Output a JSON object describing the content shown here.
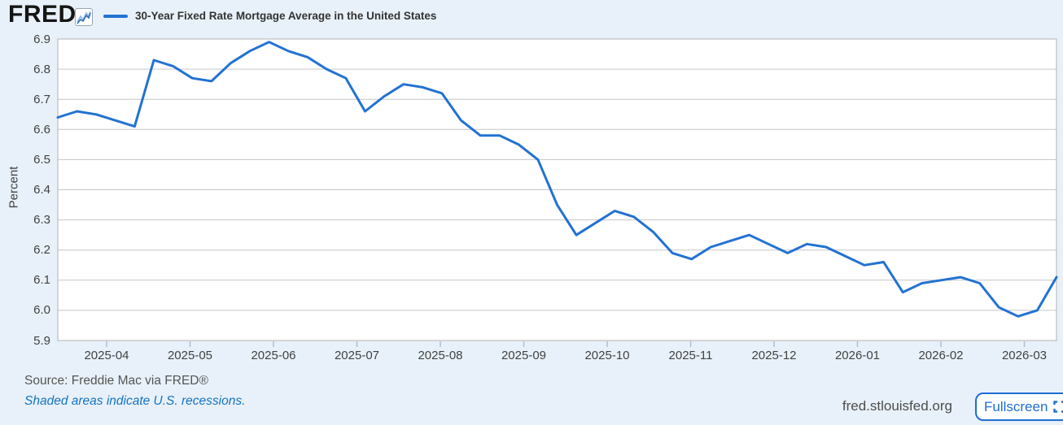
{
  "header": {
    "logo_text": "FRED",
    "logo_registered": "®"
  },
  "chart_data": {
    "type": "line",
    "title": "30-Year Fixed Rate Mortgage Average in the United States",
    "ylabel": "Percent",
    "ylim": [
      5.9,
      6.9
    ],
    "ytick_step": 0.1,
    "ytick_labels": [
      "6.9",
      "6.8",
      "6.7",
      "6.6",
      "6.5",
      "6.4",
      "6.3",
      "6.2",
      "6.1",
      "6.0",
      "5.9"
    ],
    "xtick_labels": [
      "2025-04",
      "2025-05",
      "2025-06",
      "2025-07",
      "2025-08",
      "2025-09",
      "2025-10",
      "2025-11",
      "2025-12",
      "2026-01",
      "2026-02",
      "2026-03"
    ],
    "x_range": "2025-03 to 2026-03",
    "frequency": "weekly",
    "grid": "horizontal",
    "legend_position": "top-left",
    "series": [
      {
        "name": "30-Year Fixed Rate Mortgage Average in the United States",
        "color": "#2272d2",
        "values": [
          6.64,
          6.66,
          6.65,
          6.63,
          6.61,
          6.83,
          6.81,
          6.77,
          6.76,
          6.82,
          6.86,
          6.89,
          6.86,
          6.84,
          6.8,
          6.77,
          6.66,
          6.71,
          6.75,
          6.74,
          6.72,
          6.63,
          6.58,
          6.58,
          6.55,
          6.5,
          6.35,
          6.25,
          6.29,
          6.33,
          6.31,
          6.26,
          6.19,
          6.17,
          6.21,
          6.23,
          6.25,
          6.22,
          6.19,
          6.22,
          6.21,
          6.18,
          6.15,
          6.16,
          6.06,
          6.09,
          6.1,
          6.11,
          6.09,
          6.01,
          5.98,
          6.0,
          6.11
        ]
      }
    ]
  },
  "footer": {
    "source": "Source: Freddie Mac via FRED®",
    "recession_note": "Shaded areas indicate U.S. recessions.",
    "site": "fred.stlouisfed.org",
    "fullscreen_label": "Fullscreen"
  },
  "colors": {
    "page_bg": "#e8f1f9",
    "plot_bg": "#ffffff",
    "gridline": "#c6c6c6",
    "plot_border": "#b3b3b3",
    "line": "#2272d2",
    "axis_text": "#424242",
    "title_text": "#333333",
    "source_text": "#555555",
    "link_blue": "#1574c4",
    "button_blue": "#1e6ed3",
    "site_text": "#4d4d4d",
    "tick": "#a9c0d6"
  }
}
